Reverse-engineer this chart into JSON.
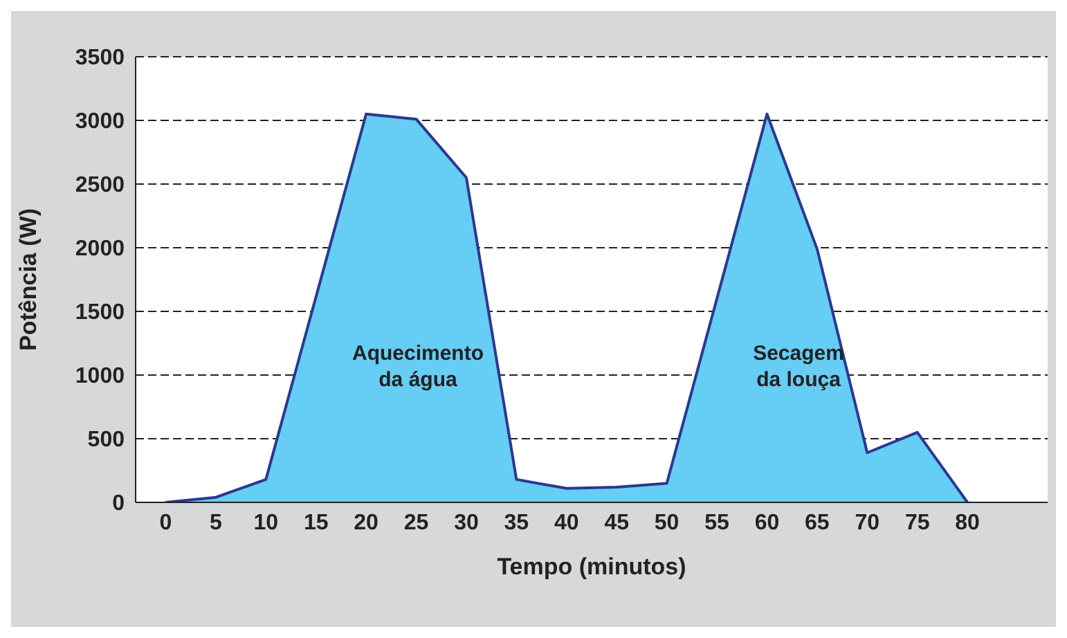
{
  "chart_data": {
    "type": "area",
    "xlabel": "Tempo (minutos)",
    "ylabel": "Potência (W)",
    "x": [
      0,
      5,
      10,
      20,
      25,
      30,
      35,
      40,
      45,
      50,
      60,
      65,
      70,
      75,
      80
    ],
    "series": [
      {
        "color": "#66cdf4",
        "values": [
          0,
          40,
          180,
          3050,
          3010,
          2550,
          180,
          110,
          120,
          150,
          3050,
          1990,
          390,
          550,
          0
        ]
      }
    ],
    "xlim": [
      -3,
      88
    ],
    "xticks": [
      0,
      5,
      10,
      15,
      20,
      25,
      30,
      35,
      40,
      45,
      50,
      55,
      60,
      65,
      70,
      75,
      80
    ],
    "ylim": [
      0,
      3500
    ],
    "yticks": [
      0,
      500,
      1000,
      1500,
      2000,
      2500,
      3000,
      3500
    ],
    "grid": "y",
    "line_style": "solid",
    "annotations": [
      "Aquecimento\nda água",
      "Secagem\nda louça"
    ]
  }
}
